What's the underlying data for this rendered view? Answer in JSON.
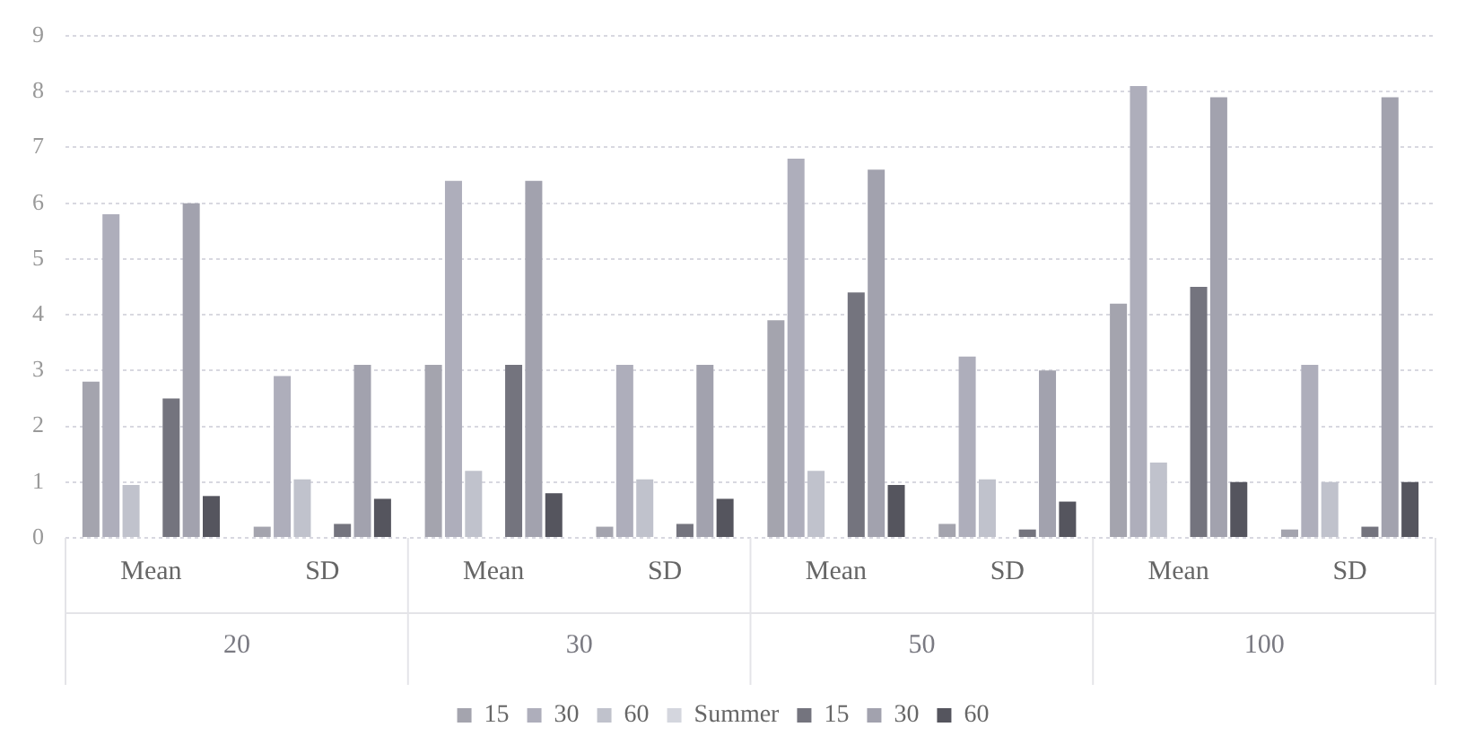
{
  "chart_data": {
    "type": "bar",
    "categories": [
      "Mean",
      "SD",
      "Mean",
      "SD",
      "Mean",
      "SD",
      "Mean",
      "SD"
    ],
    "annotations": [
      "20",
      "30",
      "50",
      "100"
    ],
    "series": [
      {
        "name": "15",
        "color": "#a4a4ae",
        "values": [
          2.8,
          0.2,
          3.1,
          0.2,
          3.9,
          0.25,
          4.2,
          0.15
        ]
      },
      {
        "name": "30",
        "color": "#aeaebb",
        "values": [
          5.8,
          2.9,
          6.4,
          3.1,
          6.8,
          3.25,
          8.1,
          3.1
        ]
      },
      {
        "name": "60",
        "color": "#c0c2cc",
        "values": [
          0.95,
          1.05,
          1.2,
          1.05,
          1.2,
          1.05,
          1.35,
          1.0
        ]
      },
      {
        "name": "Summer",
        "color": "#d4d6de",
        "values": [
          null,
          null,
          null,
          null,
          null,
          null,
          null,
          null
        ]
      },
      {
        "name": "15",
        "color": "#74747e",
        "values": [
          2.5,
          0.25,
          3.1,
          0.25,
          4.4,
          0.15,
          4.5,
          0.2
        ]
      },
      {
        "name": "30",
        "color": "#a2a2ae",
        "values": [
          6.0,
          3.1,
          6.4,
          3.1,
          6.6,
          3.0,
          7.9,
          7.9
        ]
      },
      {
        "name": "60",
        "color": "#55555e",
        "values": [
          0.75,
          0.7,
          0.8,
          0.7,
          0.95,
          0.65,
          1.0,
          1.0
        ]
      }
    ],
    "ylim": [
      0,
      9
    ],
    "yticks": [
      0,
      1,
      2,
      3,
      4,
      5,
      6,
      7,
      8,
      9
    ],
    "grid": "y",
    "legend": "bottom"
  }
}
